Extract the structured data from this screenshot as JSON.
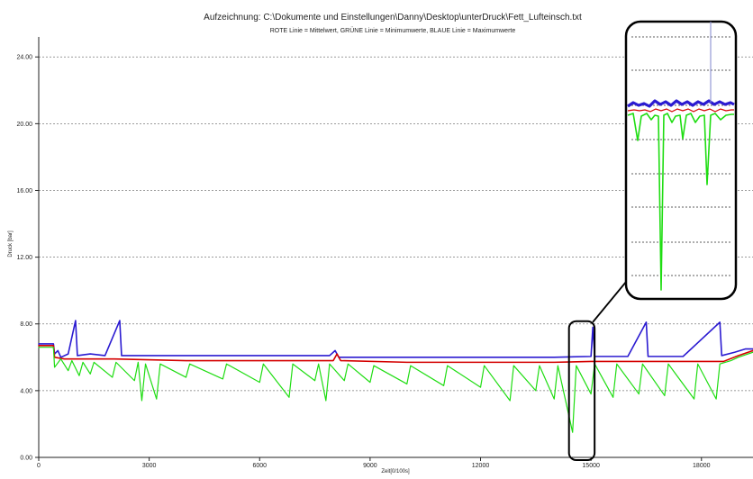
{
  "chart_data": {
    "type": "line",
    "title": "Aufzeichnung: C:\\Dokumente und Einstellungen\\Danny\\Desktop\\unterDruck\\Fett_Lufteinsch.txt",
    "subtitle": "ROTE Linie = Mittelwert, GRÜNE Linie = Minimumwerte,  BLAUE Linie = Maximumwerte",
    "xlabel": "Zeit[0/100s]",
    "ylabel": "Druck [bar]",
    "xlim": [
      0,
      19400
    ],
    "ylim": [
      0,
      25.2
    ],
    "x_ticks": [
      0,
      3000,
      6000,
      9000,
      12000,
      15000,
      18000
    ],
    "y_ticks": [
      {
        "value": 0,
        "label": "0.00"
      },
      {
        "value": 4,
        "label": "4.00"
      },
      {
        "value": 8,
        "label": "8.00"
      },
      {
        "value": 12,
        "label": "12.00"
      },
      {
        "value": 16,
        "label": "16.00"
      },
      {
        "value": 20,
        "label": "20.00"
      },
      {
        "value": 24,
        "label": "24.00"
      }
    ],
    "grid": true,
    "series": [
      {
        "name": "BLAUE Linie = Maximumwerte",
        "color": "#2b1bd1",
        "points": [
          [
            0,
            6.8
          ],
          [
            400,
            6.8
          ],
          [
            430,
            6.2
          ],
          [
            520,
            6.4
          ],
          [
            600,
            6.0
          ],
          [
            800,
            6.2
          ],
          [
            1000,
            8.2
          ],
          [
            1050,
            6.1
          ],
          [
            1400,
            6.2
          ],
          [
            1800,
            6.1
          ],
          [
            2200,
            8.2
          ],
          [
            2250,
            6.1
          ],
          [
            2600,
            6.1
          ],
          [
            3200,
            6.1
          ],
          [
            4000,
            6.1
          ],
          [
            5000,
            6.1
          ],
          [
            6000,
            6.1
          ],
          [
            7000,
            6.1
          ],
          [
            7900,
            6.1
          ],
          [
            8050,
            6.4
          ],
          [
            8150,
            6.0
          ],
          [
            9000,
            6.0
          ],
          [
            10000,
            6.0
          ],
          [
            11000,
            6.0
          ],
          [
            12000,
            6.0
          ],
          [
            13000,
            6.0
          ],
          [
            14000,
            6.0
          ],
          [
            15000,
            6.05
          ],
          [
            15050,
            7.8
          ],
          [
            15100,
            6.05
          ],
          [
            16000,
            6.05
          ],
          [
            16500,
            8.1
          ],
          [
            16550,
            6.05
          ],
          [
            17500,
            6.05
          ],
          [
            18500,
            8.1
          ],
          [
            18550,
            6.1
          ],
          [
            18900,
            6.3
          ],
          [
            19200,
            6.5
          ],
          [
            19400,
            6.5
          ]
        ]
      },
      {
        "name": "ROTE Linie = Mittelwert",
        "color": "#d40000",
        "points": [
          [
            0,
            6.7
          ],
          [
            400,
            6.7
          ],
          [
            430,
            6.0
          ],
          [
            700,
            5.9
          ],
          [
            2000,
            5.9
          ],
          [
            4000,
            5.8
          ],
          [
            8000,
            5.8
          ],
          [
            8100,
            6.2
          ],
          [
            8200,
            5.8
          ],
          [
            10000,
            5.7
          ],
          [
            12000,
            5.7
          ],
          [
            14000,
            5.7
          ],
          [
            15000,
            5.75
          ],
          [
            17000,
            5.75
          ],
          [
            18600,
            5.75
          ],
          [
            19000,
            6.1
          ],
          [
            19400,
            6.4
          ]
        ]
      },
      {
        "name": "GRÜNE Linie = Minimumwerte",
        "color": "#1fdd12",
        "points": [
          [
            0,
            6.6
          ],
          [
            400,
            6.6
          ],
          [
            430,
            5.4
          ],
          [
            600,
            5.9
          ],
          [
            800,
            5.2
          ],
          [
            900,
            5.8
          ],
          [
            1100,
            4.9
          ],
          [
            1200,
            5.7
          ],
          [
            1400,
            5.0
          ],
          [
            1500,
            5.7
          ],
          [
            2000,
            4.8
          ],
          [
            2100,
            5.7
          ],
          [
            2600,
            4.6
          ],
          [
            2700,
            5.7
          ],
          [
            2800,
            3.4
          ],
          [
            2900,
            5.6
          ],
          [
            3200,
            3.5
          ],
          [
            3300,
            5.6
          ],
          [
            4000,
            4.8
          ],
          [
            4100,
            5.6
          ],
          [
            5000,
            4.7
          ],
          [
            5100,
            5.6
          ],
          [
            6000,
            4.5
          ],
          [
            6100,
            5.6
          ],
          [
            6800,
            3.6
          ],
          [
            6900,
            5.6
          ],
          [
            7500,
            4.6
          ],
          [
            7600,
            5.6
          ],
          [
            7800,
            3.4
          ],
          [
            7900,
            5.6
          ],
          [
            8300,
            4.6
          ],
          [
            8400,
            5.6
          ],
          [
            9000,
            4.5
          ],
          [
            9100,
            5.5
          ],
          [
            10000,
            4.4
          ],
          [
            10100,
            5.5
          ],
          [
            11000,
            4.3
          ],
          [
            11100,
            5.5
          ],
          [
            12000,
            4.2
          ],
          [
            12100,
            5.5
          ],
          [
            12800,
            3.4
          ],
          [
            12900,
            5.5
          ],
          [
            13500,
            4.0
          ],
          [
            13600,
            5.5
          ],
          [
            14000,
            3.5
          ],
          [
            14100,
            5.5
          ],
          [
            14500,
            1.5
          ],
          [
            14600,
            5.5
          ],
          [
            15000,
            3.8
          ],
          [
            15100,
            5.6
          ],
          [
            15600,
            3.6
          ],
          [
            15700,
            5.6
          ],
          [
            16300,
            3.8
          ],
          [
            16400,
            5.6
          ],
          [
            17000,
            3.7
          ],
          [
            17100,
            5.6
          ],
          [
            17800,
            3.5
          ],
          [
            17900,
            5.6
          ],
          [
            18400,
            3.5
          ],
          [
            18500,
            5.6
          ],
          [
            18800,
            5.8
          ],
          [
            19000,
            6.0
          ],
          [
            19400,
            6.3
          ]
        ]
      }
    ],
    "annotation": {
      "type": "zoom-callout",
      "target_x_range": [
        14500,
        15000
      ],
      "target_y_range": [
        0,
        8
      ],
      "inset": "magnified view of the region 14500–15000"
    }
  }
}
